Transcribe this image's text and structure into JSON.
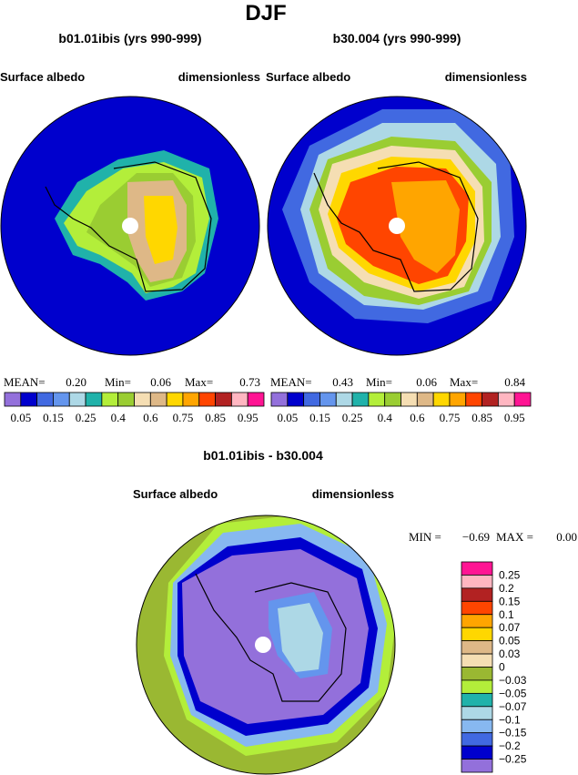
{
  "title": "DJF",
  "panels": [
    {
      "title": "b01.01ibis (yrs 990-999)",
      "left_label": "Surface albedo",
      "right_label": "dimensionless",
      "stats": {
        "mean_label": "MEAN=",
        "mean": "0.20",
        "min_label": "Min=",
        "min": "0.06",
        "max_label": "Max=",
        "max": "0.73"
      }
    },
    {
      "title": "b30.004 (yrs 990-999)",
      "left_label": "Surface albedo",
      "right_label": "dimensionless",
      "stats": {
        "mean_label": "MEAN=",
        "mean": "0.43",
        "min_label": "Min=",
        "min": "0.06",
        "max_label": "Max=",
        "max": "0.84"
      }
    }
  ],
  "colorbar": {
    "colors": [
      "#9370db",
      "#0000cd",
      "#4169e1",
      "#6495ed",
      "#add8e6",
      "#20b2aa",
      "#b3ee3a",
      "#9acd32",
      "#f5deb3",
      "#deb887",
      "#ffd700",
      "#ffa500",
      "#ff4500",
      "#b22222",
      "#ffb6c1",
      "#ff1493"
    ],
    "labels": [
      "0.05",
      "0.15",
      "0.25",
      "0.4",
      "0.6",
      "0.75",
      "0.85",
      "0.95"
    ]
  },
  "diff": {
    "title": "b01.01ibis - b30.004",
    "left_label": "Surface albedo",
    "right_label": "dimensionless",
    "min_label": "MIN =",
    "min": "−0.69",
    "max_label": "MAX =",
    "max": "0.00",
    "colorbar": {
      "colors": [
        "#ff1493",
        "#ffb6c1",
        "#b22222",
        "#ff4500",
        "#ffa500",
        "#ffd700",
        "#deb887",
        "#f5deb3",
        "#9ab832",
        "#b3ee3a",
        "#20b2aa",
        "#add8e6",
        "#87b8f0",
        "#4169e1",
        "#0000cd",
        "#9370db"
      ],
      "labels": [
        "0.25",
        "0.2",
        "0.15",
        "0.1",
        "0.07",
        "0.05",
        "0.03",
        "0",
        "−0.03",
        "−0.05",
        "−0.07",
        "−0.1",
        "−0.15",
        "−0.2",
        "−0.25"
      ]
    }
  }
}
